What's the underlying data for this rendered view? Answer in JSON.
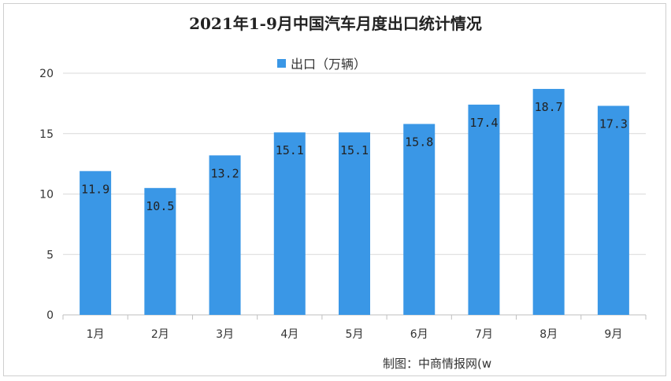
{
  "chart_data": {
    "type": "bar",
    "title": "2021年1-9月中国汽车月度出口统计情况",
    "categories": [
      "1月",
      "2月",
      "3月",
      "4月",
      "5月",
      "6月",
      "7月",
      "8月",
      "9月"
    ],
    "series": [
      {
        "name": "出口（万辆）",
        "values": [
          11.9,
          10.5,
          13.2,
          15.1,
          15.1,
          15.8,
          17.4,
          18.7,
          17.3
        ]
      }
    ],
    "data_labels": [
      "11.9",
      "10.5",
      "13.2",
      "15.1",
      "15.1",
      "15.8",
      "17.4",
      "18.7",
      "17.3"
    ],
    "y_ticks": [
      0,
      5,
      10,
      15,
      20
    ],
    "ylim": [
      0,
      20
    ],
    "grid": true,
    "legend_position": "top-center",
    "bar_color": "#3a97e6"
  },
  "credit": "制图：中商情报网(w"
}
